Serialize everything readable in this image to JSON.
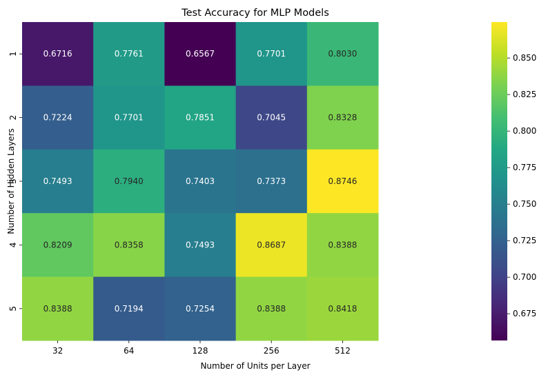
{
  "chart_data": {
    "type": "heatmap",
    "title": "Test Accuracy for MLP Models",
    "xlabel": "Number of Units per Layer",
    "ylabel": "Number of Hidden Layers",
    "x_categories": [
      "32",
      "64",
      "128",
      "256",
      "512"
    ],
    "y_categories": [
      "1",
      "2",
      "3",
      "4",
      "5"
    ],
    "values": [
      [
        0.6716,
        0.7761,
        0.6567,
        0.7701,
        0.803
      ],
      [
        0.7224,
        0.7701,
        0.7851,
        0.7045,
        0.8328
      ],
      [
        0.7493,
        0.794,
        0.7403,
        0.7373,
        0.8746
      ],
      [
        0.8209,
        0.8358,
        0.7493,
        0.8687,
        0.8388
      ],
      [
        0.8388,
        0.7194,
        0.7254,
        0.8388,
        0.8418
      ]
    ],
    "value_labels": [
      [
        "0.6716",
        "0.7761",
        "0.6567",
        "0.7701",
        "0.8030"
      ],
      [
        "0.7224",
        "0.7701",
        "0.7851",
        "0.7045",
        "0.8328"
      ],
      [
        "0.7493",
        "0.7940",
        "0.7403",
        "0.7373",
        "0.8746"
      ],
      [
        "0.8209",
        "0.8358",
        "0.7493",
        "0.8687",
        "0.8388"
      ],
      [
        "0.8388",
        "0.7194",
        "0.7254",
        "0.8388",
        "0.8418"
      ]
    ],
    "colormap": "viridis",
    "vmin": 0.6567,
    "vmax": 0.8746,
    "colorbar_ticks": [
      0.675,
      0.7,
      0.725,
      0.75,
      0.775,
      0.8,
      0.825,
      0.85
    ],
    "colorbar_tick_labels": [
      "0.675",
      "0.700",
      "0.725",
      "0.750",
      "0.775",
      "0.800",
      "0.825",
      "0.850"
    ],
    "grid": false,
    "legend": "colorbar-right"
  }
}
